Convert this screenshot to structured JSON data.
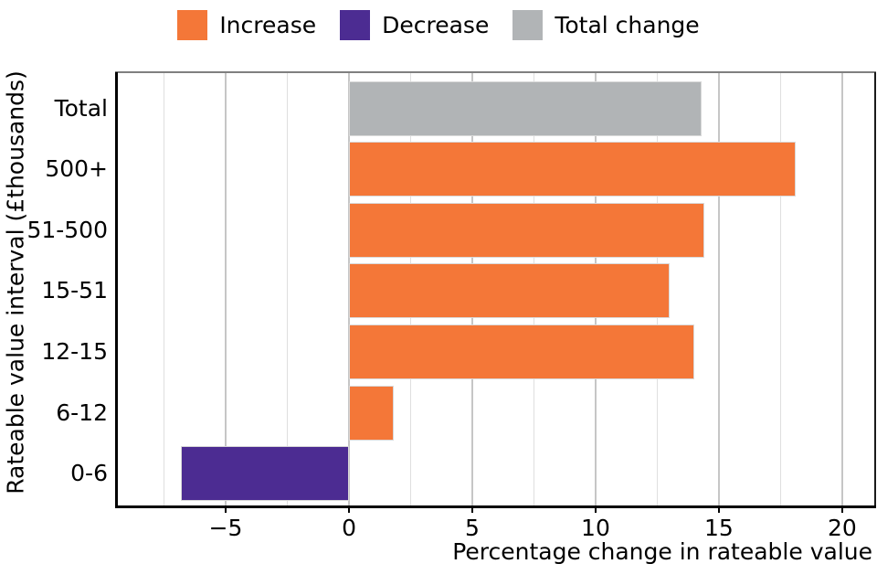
{
  "chart_data": {
    "type": "bar",
    "orientation": "horizontal",
    "xlabel": "Percentage change in rateable value",
    "ylabel": "Rateable value interval (£thousands)",
    "categories": [
      "Total",
      "500+",
      "51-500",
      "15-51",
      "12-15",
      "6-12",
      "0-6"
    ],
    "values": [
      14.3,
      18.1,
      14.4,
      13.0,
      14.0,
      1.8,
      -6.8
    ],
    "bar_series": [
      "Total change",
      "Increase",
      "Increase",
      "Increase",
      "Increase",
      "Increase",
      "Decrease"
    ],
    "legend": [
      "Increase",
      "Decrease",
      "Total change"
    ],
    "colors": {
      "Increase": "#F47738",
      "Decrease": "#4C2C92",
      "Total change": "#B1B4B6"
    },
    "xlim": [
      -9.41,
      21.3
    ],
    "xticks": [
      -5,
      0,
      5,
      10,
      15,
      20
    ],
    "xtick_labels": [
      "−5",
      "0",
      "5",
      "10",
      "15",
      "20"
    ],
    "minor_gridlines": [
      -7.5,
      -2.5,
      2.5,
      7.5,
      12.5,
      17.5
    ],
    "grid": "vertical",
    "legend_position": "top-center"
  }
}
